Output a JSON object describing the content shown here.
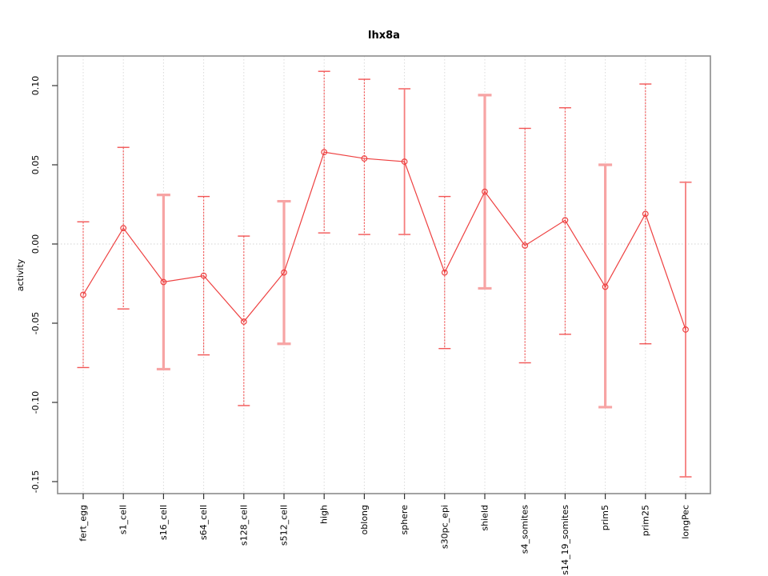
{
  "chart_data": {
    "type": "line",
    "title": "lhx8a",
    "ylabel": "activity",
    "xlabel": "",
    "legend": "none",
    "grid": "vertical-dotted-gridlines-plus-dotted-zero-line",
    "categories": [
      "fert_egg",
      "s1_cell",
      "s16_cell",
      "s64_cell",
      "s128_cell",
      "s512_cell",
      "high",
      "oblong",
      "sphere",
      "s30pc_epi",
      "shield",
      "s4_somites",
      "s14_19_somites",
      "prim5",
      "prim25",
      "longPec"
    ],
    "series": [
      {
        "name": "activity",
        "values": [
          -0.032,
          0.01,
          -0.024,
          -0.02,
          -0.049,
          -0.018,
          0.058,
          0.054,
          0.052,
          -0.018,
          0.033,
          -0.001,
          0.015,
          -0.027,
          0.019,
          -0.054
        ]
      }
    ],
    "error_low": [
      -0.078,
      -0.041,
      -0.079,
      -0.07,
      -0.102,
      -0.063,
      0.007,
      0.006,
      0.006,
      -0.066,
      -0.028,
      -0.075,
      -0.057,
      -0.103,
      -0.063,
      -0.147
    ],
    "error_high": [
      0.014,
      0.061,
      0.031,
      0.03,
      0.005,
      0.027,
      0.109,
      0.104,
      0.098,
      0.03,
      0.094,
      0.073,
      0.086,
      0.05,
      0.101,
      0.039
    ],
    "bar_weight": [
      "thin",
      "thin",
      "thick",
      "thin",
      "thin",
      "thick",
      "thin",
      "thin",
      "medium",
      "thin",
      "thick",
      "thin",
      "thin",
      "thick",
      "thin",
      "medium"
    ],
    "yticks": [
      0.1,
      0.05,
      0.0,
      -0.05,
      -0.1,
      -0.15
    ],
    "ytick_labels": [
      "0.10",
      "0.05",
      "0.00",
      "-0.05",
      "-0.10",
      "-0.15"
    ],
    "ylim": [
      -0.158,
      0.119
    ],
    "colors": {
      "line": "#ee4040",
      "point": "#ee4040",
      "errorbar_thin": "#f25555",
      "errorbar_medium": "#f57d7d",
      "errorbar_thick": "#f7a4a4",
      "gridline": "#d9d9d9",
      "zero_line": "#d2d2d2",
      "box": "#8c8c8c",
      "tick": "#333333",
      "text": "#000000"
    }
  }
}
